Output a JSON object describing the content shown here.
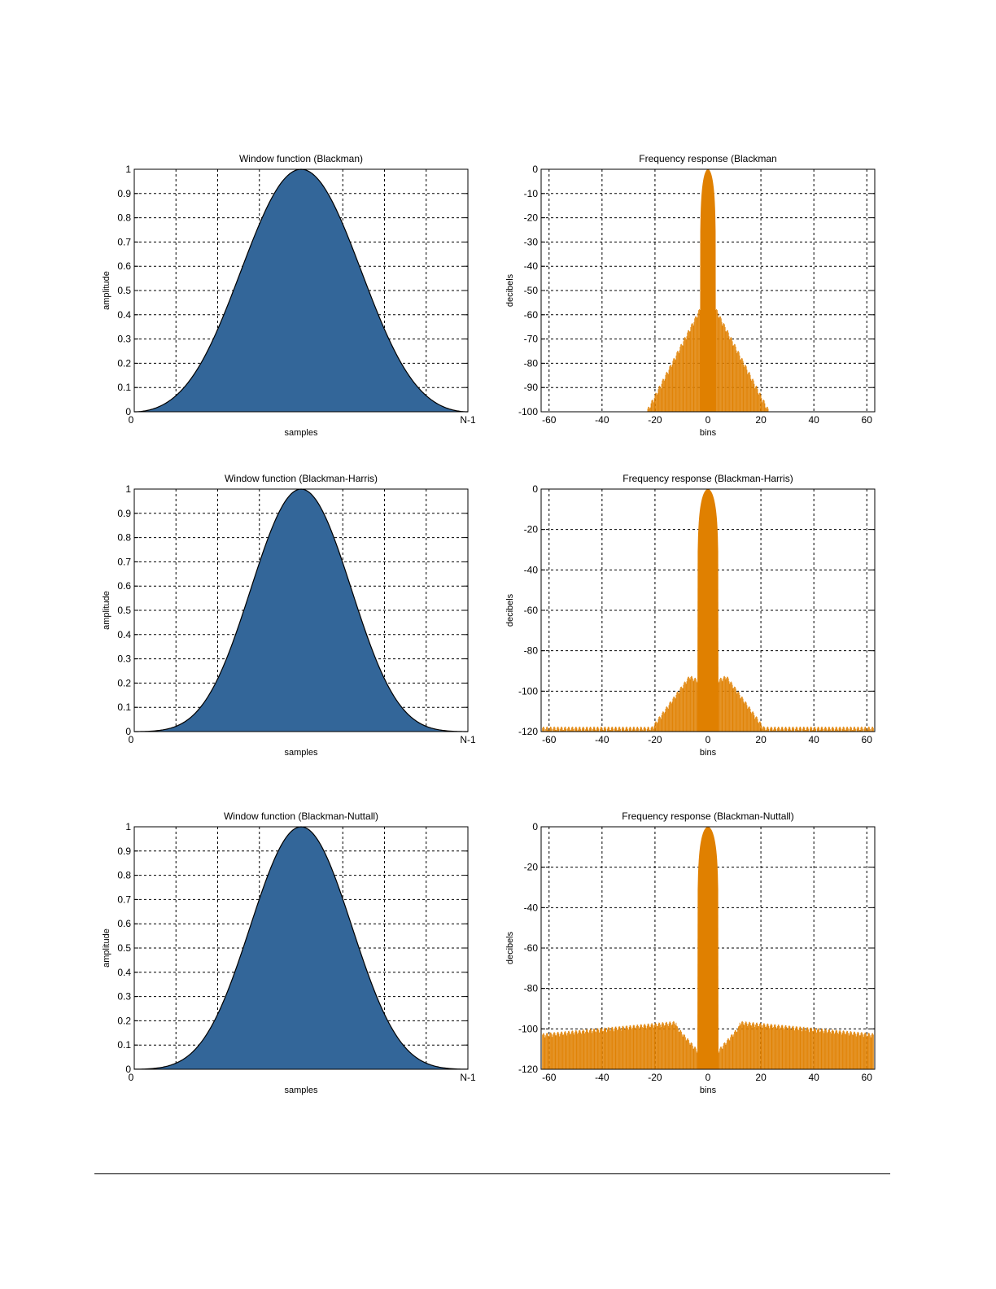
{
  "colors": {
    "window_fill": "#336699",
    "window_stroke": "#000000",
    "freq_fill": "#E08000"
  },
  "charts": [
    {
      "id": "w1",
      "type": "area",
      "kind": "window",
      "title": "Window function (Blackman)",
      "xlabel": "samples",
      "ylabel": "amplitude",
      "xticks": [
        "0",
        "N-1"
      ],
      "yticks": [
        "0",
        "0.1",
        "0.2",
        "0.3",
        "0.4",
        "0.5",
        "0.6",
        "0.7",
        "0.8",
        "0.9",
        "1"
      ],
      "ylim": [
        0,
        1
      ],
      "grid": true
    },
    {
      "id": "f1",
      "type": "bar",
      "kind": "freq",
      "title": "Frequency response (Blackman",
      "xlabel": "bins",
      "ylabel": "decibels",
      "xlim": [
        -63,
        63
      ],
      "ylim": [
        -100,
        0
      ],
      "xticks": [
        "-60",
        "-40",
        "-20",
        "0",
        "20",
        "40",
        "60"
      ],
      "yticks": [
        "0",
        "-10",
        "-20",
        "-30",
        "-40",
        "-50",
        "-60",
        "-70",
        "-80",
        "-90",
        "-100"
      ],
      "grid": true
    },
    {
      "id": "w2",
      "type": "area",
      "kind": "window",
      "title": "Window function (Blackman-Harris)",
      "xlabel": "samples",
      "ylabel": "amplitude",
      "xticks": [
        "0",
        "N-1"
      ],
      "yticks": [
        "0",
        "0.1",
        "0.2",
        "0.3",
        "0.4",
        "0.5",
        "0.6",
        "0.7",
        "0.8",
        "0.9",
        "1"
      ],
      "ylim": [
        0,
        1
      ],
      "grid": true
    },
    {
      "id": "f2",
      "type": "bar",
      "kind": "freq",
      "title": "Frequency response (Blackman-Harris)",
      "xlabel": "bins",
      "ylabel": "decibels",
      "xlim": [
        -63,
        63
      ],
      "ylim": [
        -120,
        0
      ],
      "xticks": [
        "-60",
        "-40",
        "-20",
        "0",
        "20",
        "40",
        "60"
      ],
      "yticks": [
        "0",
        "-20",
        "-40",
        "-60",
        "-80",
        "-100",
        "-120"
      ],
      "grid": true
    },
    {
      "id": "w3",
      "type": "area",
      "kind": "window",
      "title": "Window function (Blackman-Nuttall)",
      "xlabel": "samples",
      "ylabel": "amplitude",
      "xticks": [
        "0",
        "N-1"
      ],
      "yticks": [
        "0",
        "0.1",
        "0.2",
        "0.3",
        "0.4",
        "0.5",
        "0.6",
        "0.7",
        "0.8",
        "0.9",
        "1"
      ],
      "ylim": [
        0,
        1
      ],
      "grid": true
    },
    {
      "id": "f3",
      "type": "bar",
      "kind": "freq",
      "title": "Frequency response (Blackman-Nuttall)",
      "xlabel": "bins",
      "ylabel": "decibels",
      "xlim": [
        -63,
        63
      ],
      "ylim": [
        -120,
        0
      ],
      "xticks": [
        "-60",
        "-40",
        "-20",
        "0",
        "20",
        "40",
        "60"
      ],
      "yticks": [
        "0",
        "-20",
        "-40",
        "-60",
        "-80",
        "-100",
        "-120"
      ],
      "grid": true
    }
  ]
}
